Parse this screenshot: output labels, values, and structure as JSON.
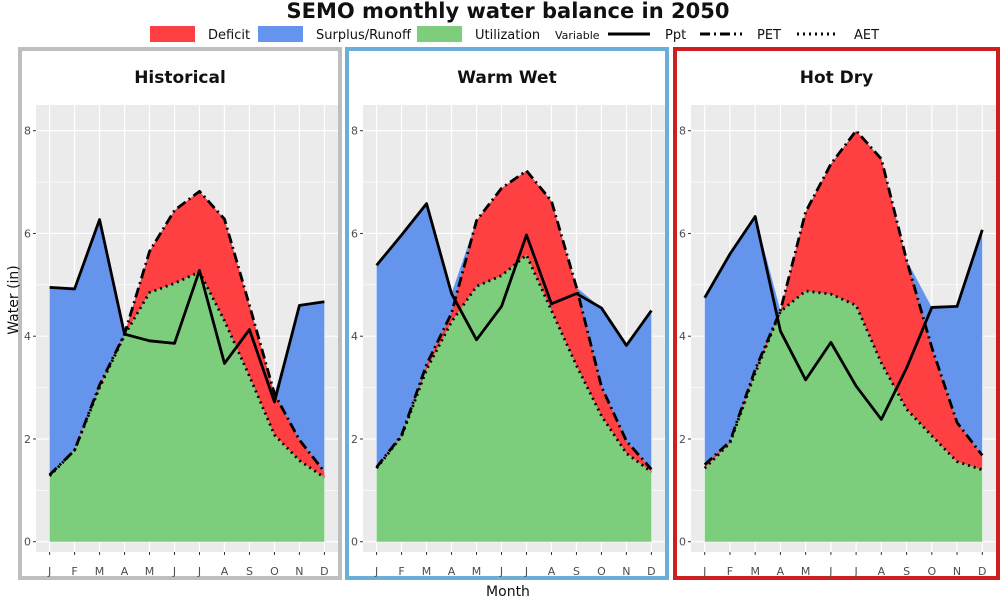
{
  "figure": {
    "title": "SEMO monthly water balance in 2050",
    "xlabel": "Month",
    "ylabel": "Water (in)",
    "colors": {
      "deficit": "#fe4042",
      "surplus": "#6494ec",
      "utilization": "#7ccd7c",
      "panel_bg": "#ebebeb",
      "grid": "#ffffff"
    },
    "legend": {
      "fill_items": [
        {
          "key": "deficit",
          "label": "Deficit"
        },
        {
          "key": "surplus",
          "label": "Surplus/Runoff"
        },
        {
          "key": "utilization",
          "label": "Utilization"
        }
      ],
      "variable_title": "Variable",
      "line_items": [
        {
          "key": "ppt",
          "label": "Ppt",
          "style": "solid"
        },
        {
          "key": "pet",
          "label": "PET",
          "style": "dashdot"
        },
        {
          "key": "aet",
          "label": "AET",
          "style": "dotted"
        }
      ]
    }
  },
  "chart_data": [
    {
      "type": "area",
      "title": "Historical",
      "border_color": "#bebebe",
      "categories": [
        "J",
        "F",
        "M",
        "A",
        "M",
        "J",
        "J",
        "A",
        "S",
        "O",
        "N",
        "D"
      ],
      "yticks": [
        0,
        2,
        4,
        6,
        8
      ],
      "ylim": [
        -0.2,
        8.5
      ],
      "series": [
        {
          "name": "Ppt",
          "values": [
            4.95,
            4.92,
            6.27,
            4.04,
            3.91,
            3.86,
            5.28,
            3.47,
            4.13,
            2.72,
            4.6,
            4.67
          ]
        },
        {
          "name": "PET",
          "values": [
            1.3,
            1.78,
            3.05,
            4.04,
            5.65,
            6.45,
            6.82,
            6.28,
            4.6,
            2.88,
            1.98,
            1.36
          ]
        },
        {
          "name": "AET",
          "values": [
            1.28,
            1.78,
            3.0,
            4.02,
            4.85,
            5.03,
            5.25,
            4.3,
            3.22,
            2.08,
            1.58,
            1.25
          ]
        }
      ]
    },
    {
      "type": "area",
      "title": "Warm Wet",
      "border_color": "#6baed6",
      "categories": [
        "J",
        "F",
        "M",
        "A",
        "M",
        "J",
        "J",
        "A",
        "S",
        "O",
        "N",
        "D"
      ],
      "yticks": [
        0,
        2,
        4,
        6,
        8
      ],
      "ylim": [
        -0.2,
        8.5
      ],
      "series": [
        {
          "name": "Ppt",
          "values": [
            5.38,
            5.97,
            6.58,
            4.83,
            3.93,
            4.58,
            5.97,
            4.63,
            4.83,
            4.55,
            3.82,
            4.5
          ]
        },
        {
          "name": "PET",
          "values": [
            1.45,
            2.07,
            3.45,
            4.45,
            6.25,
            6.88,
            7.22,
            6.63,
            4.95,
            3.02,
            1.96,
            1.41
          ]
        },
        {
          "name": "AET",
          "values": [
            1.43,
            2.05,
            3.35,
            4.28,
            4.97,
            5.18,
            5.58,
            4.5,
            3.43,
            2.45,
            1.72,
            1.36
          ]
        }
      ]
    },
    {
      "type": "area",
      "title": "Hot Dry",
      "border_color": "#cd1f1f",
      "categories": [
        "J",
        "F",
        "M",
        "A",
        "M",
        "J",
        "J",
        "A",
        "S",
        "O",
        "N",
        "D"
      ],
      "yticks": [
        0,
        2,
        4,
        6,
        8
      ],
      "ylim": [
        -0.2,
        8.5
      ],
      "series": [
        {
          "name": "Ppt",
          "values": [
            4.75,
            5.6,
            6.33,
            4.1,
            3.15,
            3.88,
            3.03,
            2.38,
            3.38,
            4.56,
            4.58,
            6.07
          ]
        },
        {
          "name": "PET",
          "values": [
            1.5,
            1.95,
            3.35,
            4.5,
            6.42,
            7.35,
            8.0,
            7.45,
            5.48,
            3.78,
            2.32,
            1.68
          ]
        },
        {
          "name": "AET",
          "values": [
            1.43,
            1.92,
            3.28,
            4.48,
            4.88,
            4.82,
            4.6,
            3.48,
            2.58,
            2.06,
            1.56,
            1.4
          ]
        }
      ]
    }
  ]
}
